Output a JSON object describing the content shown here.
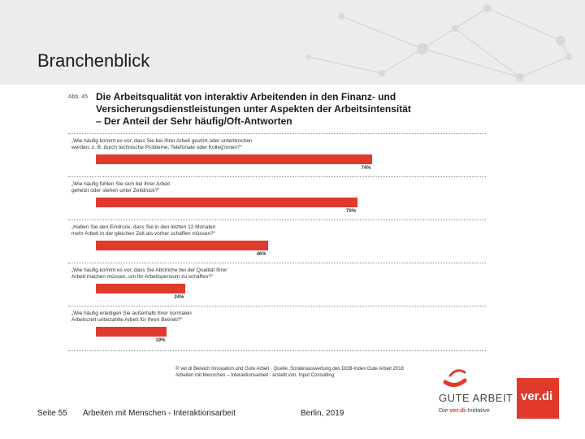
{
  "slide_title": "Branchenblick",
  "figure": {
    "label": "Abb. 45",
    "title_lines": [
      "Die Arbeitsqualität von interaktiv Arbeitenden in den Finanz- und",
      "Versicherungsdienstleistungen unter Aspekten der Arbeitsintensität",
      "– Der Anteil der Sehr häufig/Oft-Antworten"
    ]
  },
  "chart_data": {
    "type": "bar",
    "orientation": "horizontal",
    "categories": [
      "„Wie häufig kommt es vor, dass Sie bei Ihrer Arbeit gestört oder unterbrochen werden, z. B. durch technische Probleme, Telefonate oder Kollegʼinnen?“",
      "„Wie häufig fühlen Sie sich bei Ihrer Arbeit gehetzt oder stehen unter Zeitdruck?“",
      "„Haben Sie den Eindruck, dass Sie in den letzten 12 Monaten mehr Arbeit in der gleichen Zeit als vorher schaffen müssen?“",
      "„Wie häufig kommt es vor, dass Sie Abstriche bei der Qualität Ihrer Arbeit machen müssen, um Ihr Arbeitspensum zu schaffen?“",
      "„Wie häufig erledigen Sie außerhalb Ihrer normalen Arbeitszeit unbezahlte Arbeit für Ihren Betrieb?“"
    ],
    "category_lines": [
      [
        "„Wie häufig kommt es vor, dass Sie bei Ihrer Arbeit gestört oder unterbrochen",
        "werden, z. B. durch technische Probleme, Telefonate oder Kollegʼinnen?“"
      ],
      [
        "„Wie häufig fühlen Sie sich bei Ihrer Arbeit",
        "gehetzt oder stehen unter Zeitdruck?“"
      ],
      [
        "„Haben Sie den Eindruck, dass Sie in den letzten 12 Monaten",
        "mehr Arbeit in der gleichen Zeit als vorher schaffen müssen?“"
      ],
      [
        "„Wie häufig kommt es vor, dass Sie Abstriche bei der Qualität Ihrer",
        "Arbeit machen müssen, um Ihr Arbeitspensum zu schaffen?“"
      ],
      [
        "„Wie häufig erledigen Sie außerhalb Ihrer normalen",
        "Arbeitszeit unbezahlte Arbeit für Ihren Betrieb?“"
      ]
    ],
    "values": [
      74,
      70,
      46,
      24,
      19
    ],
    "value_labels": [
      "74%",
      "70%",
      "46%",
      "24%",
      "19%"
    ],
    "xlim": [
      0,
      100
    ],
    "bar_color": "#e03a2d",
    "grid": false
  },
  "source_lines": [
    "© ver.di Bereich Innovation und Gute Arbeit · Quelle: Sonderauswertung des DGB-Index Gute Arbeit 2018",
    "Arbeiten mit Menschen – Interaktionsarbeit · erstellt von: Input Consulting"
  ],
  "footer": {
    "page": "Seite 55",
    "subject": "Arbeiten mit Menschen - Interaktionsarbeit",
    "place_date": "Berlin, 2019"
  },
  "logos": {
    "gute_arbeit": "GUTE ARBEIT",
    "gute_arbeit_sub_prefix": "Die ",
    "gute_arbeit_sub_brand": "ver.di",
    "gute_arbeit_sub_suffix": "-Initiative",
    "verdi": "ver.di"
  }
}
